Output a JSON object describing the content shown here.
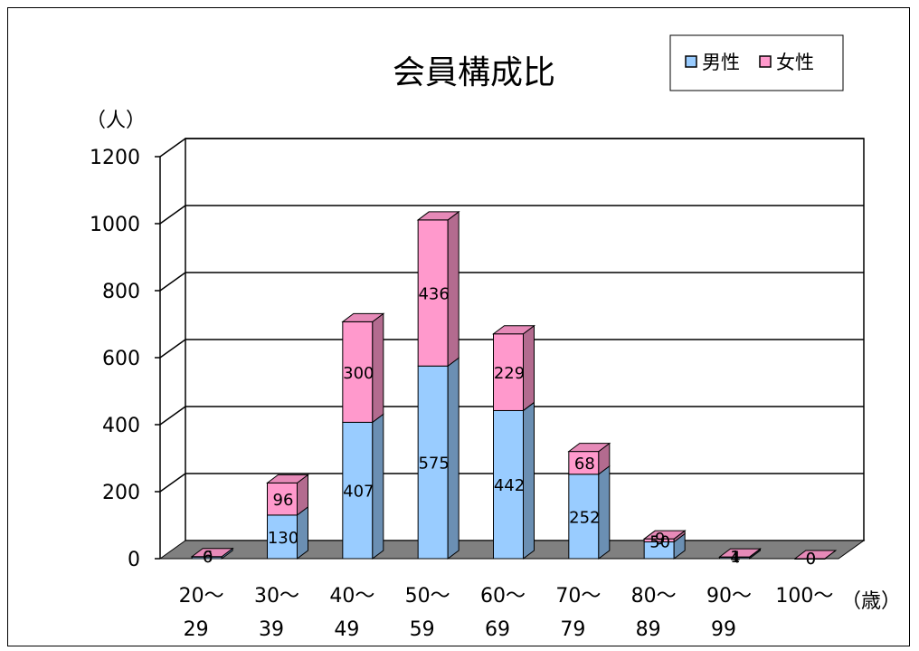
{
  "chart_data": {
    "type": "bar",
    "stacked": true,
    "title": "会員構成比",
    "ylabel": "（人）",
    "xlabel": "（歳）",
    "ylim": [
      0,
      1200
    ],
    "yticks": [
      0,
      200,
      400,
      600,
      800,
      1000,
      1200
    ],
    "grid": true,
    "legend_position": "top-right",
    "categories": [
      [
        "20～",
        "29"
      ],
      [
        "30～",
        "39"
      ],
      [
        "40～",
        "49"
      ],
      [
        "50～",
        "59"
      ],
      [
        "60～",
        "69"
      ],
      [
        "70～",
        "79"
      ],
      [
        "80～",
        "89"
      ],
      [
        "90～",
        "99"
      ],
      [
        "100～",
        ""
      ]
    ],
    "series": [
      {
        "name": "男性",
        "color": "#99ccff",
        "values": [
          6,
          130,
          407,
          575,
          442,
          252,
          50,
          4,
          0
        ]
      },
      {
        "name": "女性",
        "color": "#ff99cc",
        "values": [
          0,
          96,
          300,
          436,
          229,
          68,
          9,
          1,
          0
        ]
      }
    ],
    "data_labels": [
      [
        "6",
        "130",
        "407",
        "575",
        "442",
        "252",
        "50",
        "4",
        "0"
      ],
      [
        "0",
        "96",
        "300",
        "436",
        "229",
        "68",
        "9",
        "1",
        "0"
      ]
    ]
  }
}
